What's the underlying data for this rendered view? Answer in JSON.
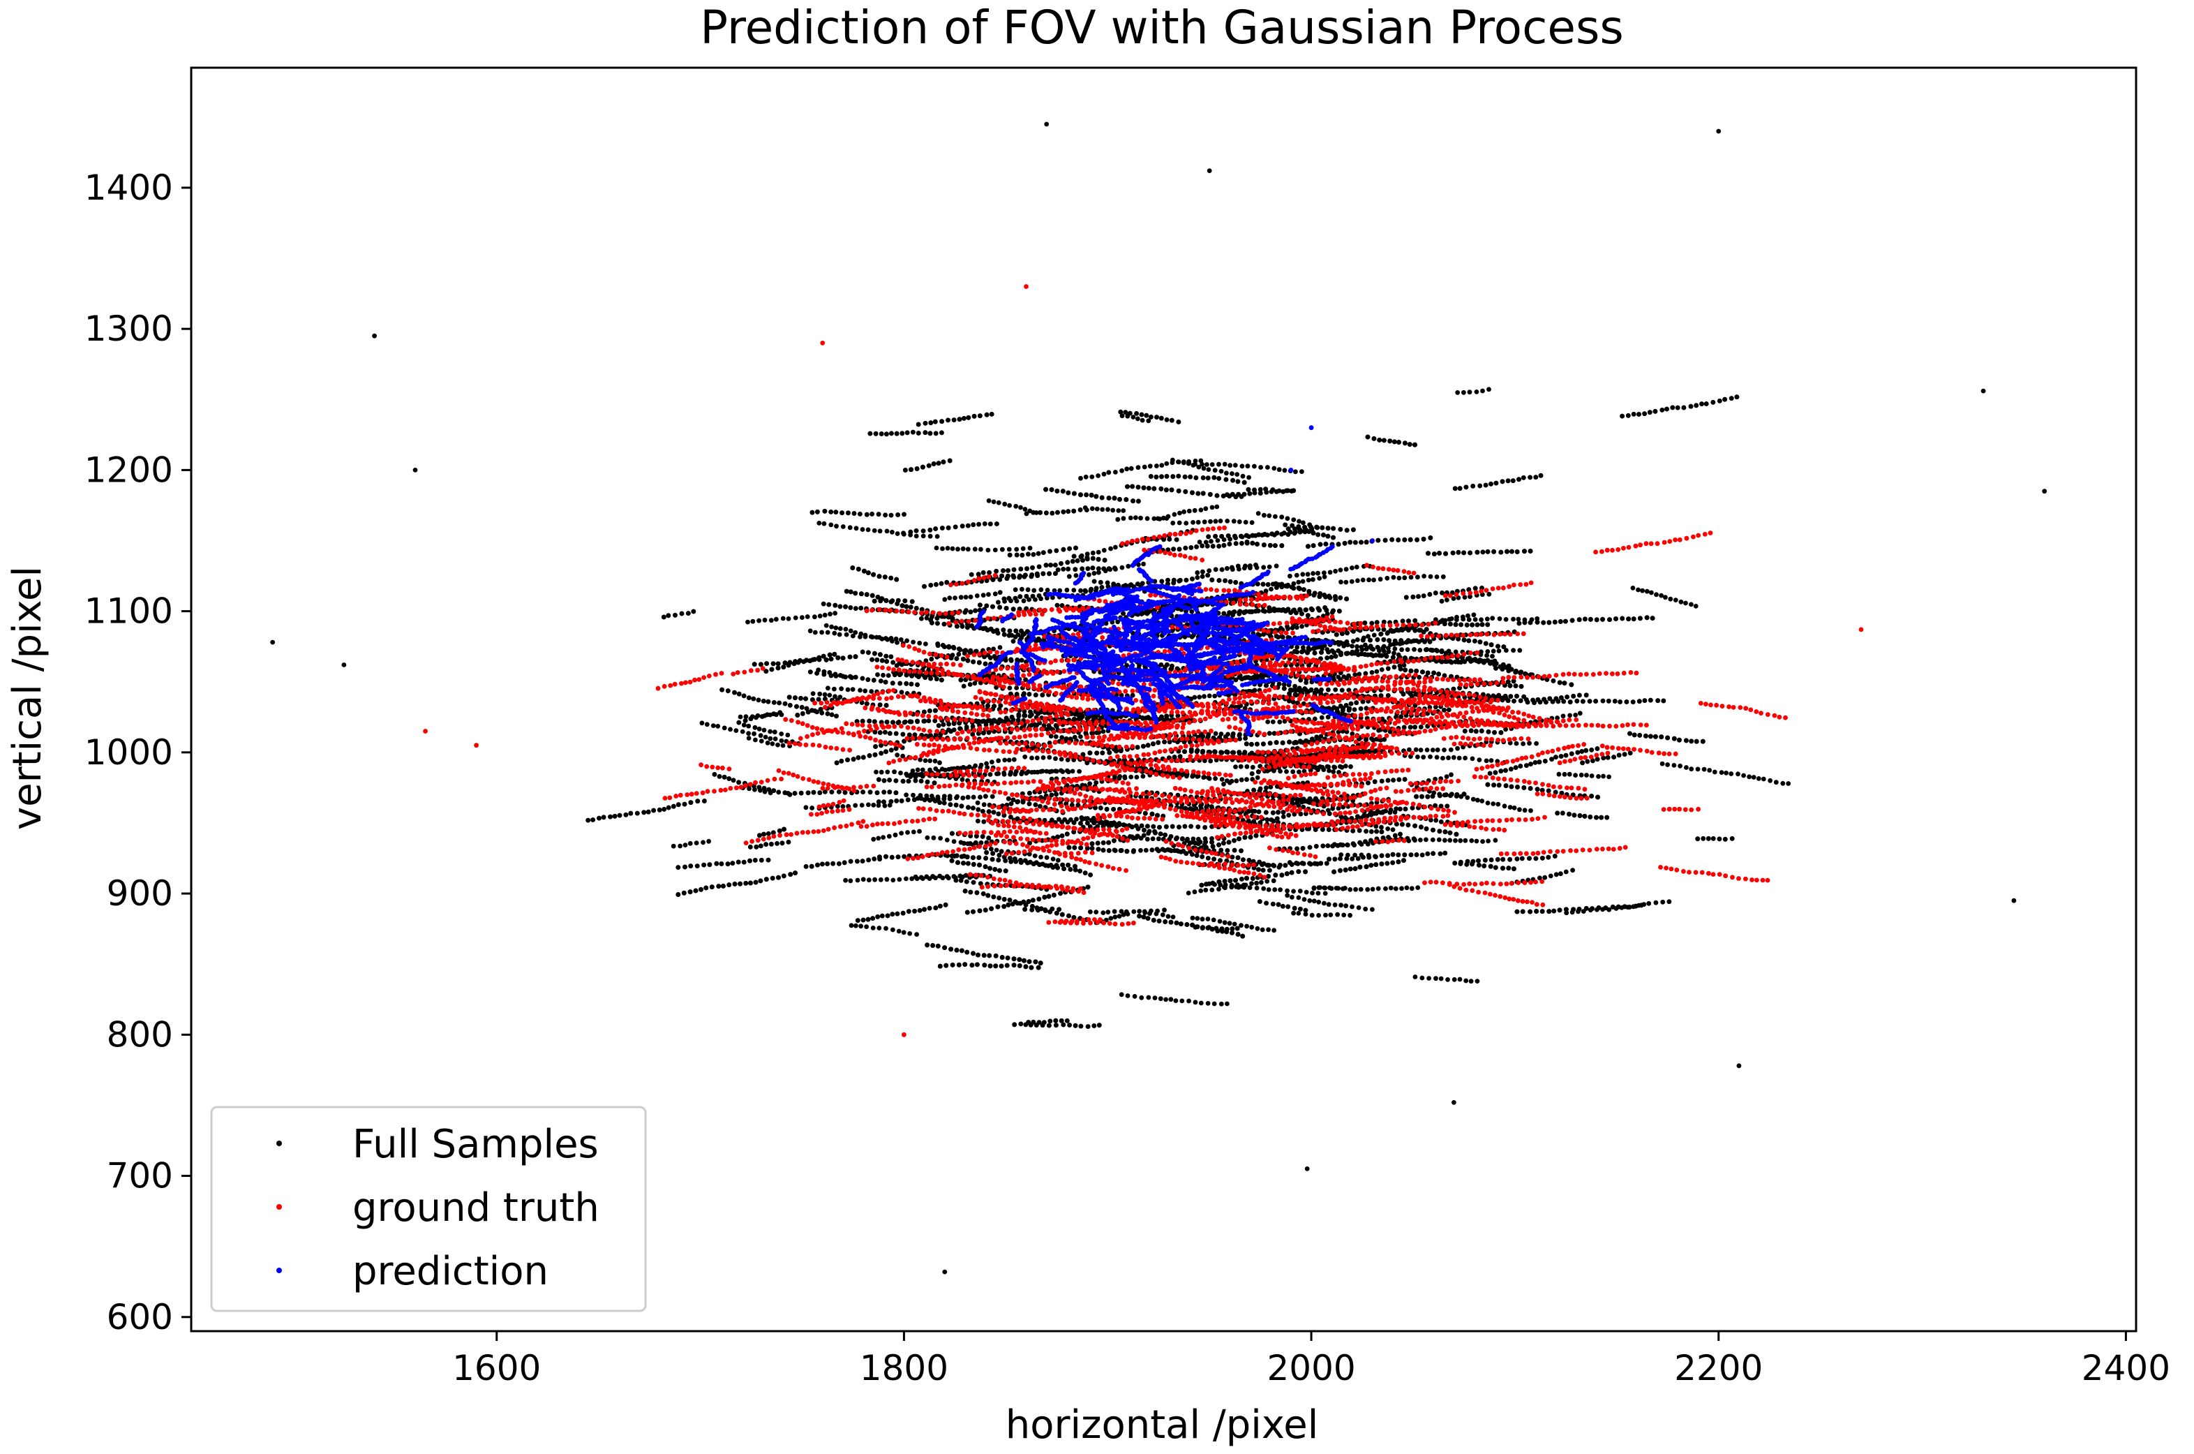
{
  "chart_data": {
    "type": "scatter",
    "title": "Prediction of FOV with Gaussian Process",
    "xlabel": "horizontal /pixel",
    "ylabel": "vertical /pixel",
    "xlim": [
      1450,
      2405
    ],
    "ylim": [
      590,
      1485
    ],
    "xticks": [
      1600,
      1800,
      2000,
      2200,
      2400
    ],
    "yticks": [
      600,
      700,
      800,
      900,
      1000,
      1100,
      1200,
      1300,
      1400
    ],
    "grid": false,
    "legend_position": "lower-left",
    "series": [
      {
        "name": "Full Samples",
        "color": "#000000",
        "center": [
          1920,
          1030
        ],
        "spread": [
          150,
          115
        ],
        "count": 11000,
        "outliers": [
          [
            1490,
            1078
          ],
          [
            1525,
            1062
          ],
          [
            1540,
            1295
          ],
          [
            1560,
            1200
          ],
          [
            2200,
            1440
          ],
          [
            2330,
            1256
          ],
          [
            2345,
            895
          ],
          [
            2360,
            1185
          ],
          [
            1870,
            1445
          ],
          [
            1950,
            1412
          ],
          [
            1820,
            632
          ],
          [
            1998,
            705
          ],
          [
            2070,
            752
          ],
          [
            2210,
            778
          ]
        ]
      },
      {
        "name": "ground truth",
        "color": "#ff0000",
        "center": [
          1930,
          1015
        ],
        "spread": [
          135,
          70
        ],
        "count": 3600,
        "outliers": [
          [
            1565,
            1015
          ],
          [
            1590,
            1005
          ],
          [
            2270,
            1087
          ],
          [
            1760,
            1290
          ],
          [
            1800,
            800
          ],
          [
            1860,
            1330
          ]
        ]
      },
      {
        "name": "prediction",
        "color": "#0000ff",
        "center": [
          1920,
          1075
        ],
        "spread": [
          45,
          30
        ],
        "count": 2600,
        "outliers": [
          [
            2000,
            1230
          ],
          [
            1990,
            1200
          ],
          [
            2030,
            1150
          ],
          [
            1920,
            1140
          ]
        ]
      }
    ]
  }
}
